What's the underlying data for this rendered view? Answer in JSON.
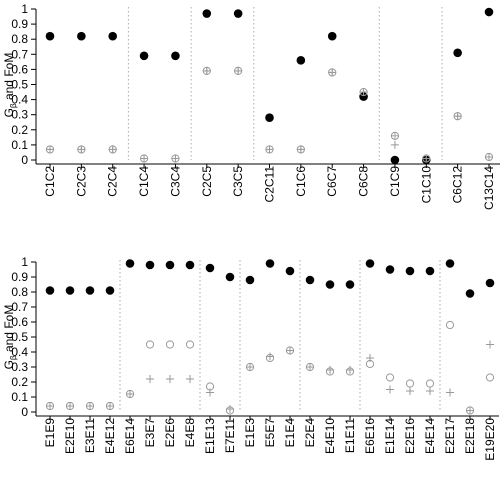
{
  "chart_data": [
    {
      "type": "scatter",
      "ylabel": {
        "main": "G",
        "sub": "β",
        "rest": " and FoM"
      },
      "ylim": [
        0,
        1
      ],
      "yticks": [
        0,
        0.1,
        0.2,
        0.3,
        0.4,
        0.5,
        0.6,
        0.7,
        0.8,
        0.9,
        1
      ],
      "ytick_labels": [
        "0",
        "0.1",
        "0.2",
        "0.3",
        "0.4",
        "0.5",
        "0.6",
        "0.7",
        "0.8",
        "0.9",
        "1"
      ],
      "categories": [
        "C1C2",
        "C2C3",
        "C2C4",
        "C1C4",
        "C3C4",
        "C2C5",
        "C3C5",
        "C2C11",
        "C1C6",
        "C6C7",
        "C6C8",
        "C1C9",
        "C1C10",
        "C6C12",
        "C13C14"
      ],
      "group_breaks_after": [
        3,
        5,
        7,
        11,
        13
      ],
      "series": [
        {
          "marker": "filled-circle",
          "color": "#000000",
          "values": [
            0.82,
            0.82,
            0.82,
            0.69,
            0.69,
            0.97,
            0.97,
            0.28,
            0.66,
            0.82,
            0.42,
            0.0,
            0.0,
            0.71,
            0.98
          ]
        },
        {
          "marker": "open-circle-plus",
          "color": "#999999",
          "values": [
            0.07,
            0.07,
            0.07,
            0.01,
            0.01,
            0.59,
            0.59,
            0.07,
            0.07,
            0.58,
            0.45,
            0.16,
            0.01,
            0.29,
            0.02
          ]
        },
        {
          "marker": "plus",
          "color": "#999999",
          "values": [
            0.07,
            0.07,
            0.07,
            0.01,
            0.01,
            0.59,
            0.59,
            0.07,
            0.07,
            0.58,
            0.45,
            0.1,
            0.01,
            0.29,
            0.02
          ]
        }
      ]
    },
    {
      "type": "scatter",
      "ylabel": {
        "main": "G",
        "sub": "β",
        "rest": " and FoM"
      },
      "ylim": [
        0,
        1
      ],
      "yticks": [
        0,
        0.1,
        0.2,
        0.3,
        0.4,
        0.5,
        0.6,
        0.7,
        0.8,
        0.9,
        1
      ],
      "ytick_labels": [
        "0",
        "0.1",
        "0.2",
        "0.3",
        "0.4",
        "0.5",
        "0.6",
        "0.7",
        "0.8",
        "0.9",
        "1"
      ],
      "categories": [
        "E1E9",
        "E2E10",
        "E3E11",
        "E4E12",
        "E6E14",
        "E3E7",
        "E2E6",
        "E4E8",
        "E1E13",
        "E7E11",
        "E1E3",
        "E5E7",
        "E1E4",
        "E2E4",
        "E4E10",
        "E1E11",
        "E6E16",
        "E1E14",
        "E2E16",
        "E4E14",
        "E2E17",
        "E2E18",
        "E19E20"
      ],
      "group_breaks_after": [
        4,
        8,
        10,
        13,
        16,
        20
      ],
      "series": [
        {
          "marker": "filled-circle",
          "color": "#000000",
          "values": [
            0.81,
            0.81,
            0.81,
            0.81,
            0.99,
            0.98,
            0.98,
            0.98,
            0.96,
            0.9,
            0.88,
            0.99,
            0.94,
            0.88,
            0.85,
            0.85,
            0.99,
            0.95,
            0.94,
            0.94,
            0.99,
            0.79,
            0.86
          ]
        },
        {
          "marker": "open-circle",
          "color": "#999999",
          "values": [
            0.04,
            0.04,
            0.04,
            0.04,
            0.12,
            0.45,
            0.45,
            0.45,
            0.17,
            0.01,
            0.3,
            0.36,
            0.41,
            0.3,
            0.27,
            0.27,
            0.32,
            0.23,
            0.19,
            0.19,
            0.58,
            0.01,
            0.23
          ]
        },
        {
          "marker": "plus",
          "color": "#999999",
          "values": [
            0.04,
            0.04,
            0.04,
            0.04,
            0.12,
            0.22,
            0.22,
            0.22,
            0.13,
            0.02,
            0.3,
            0.37,
            0.41,
            0.3,
            0.28,
            0.28,
            0.36,
            0.15,
            0.14,
            0.14,
            0.13,
            0.01,
            0.45
          ]
        }
      ]
    }
  ]
}
